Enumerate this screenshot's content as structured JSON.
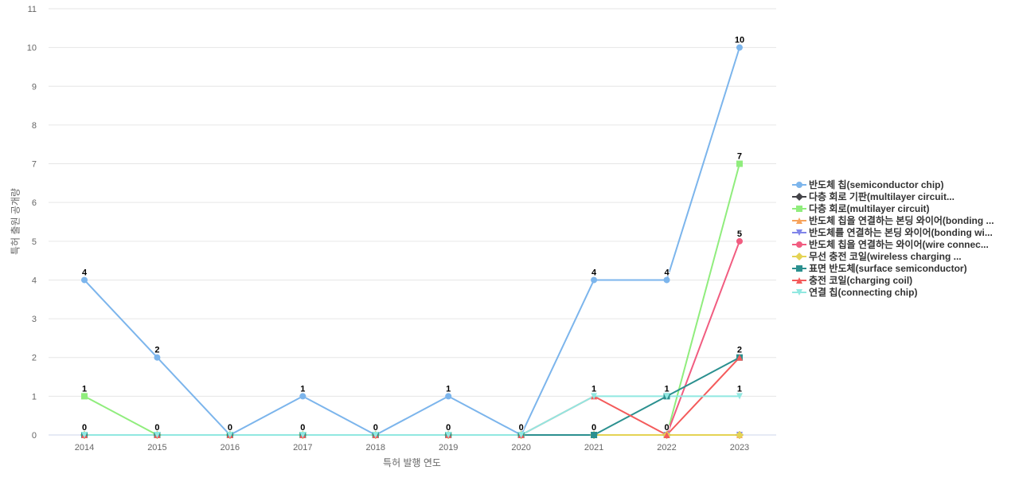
{
  "chart_data": {
    "type": "line",
    "xlabel": "특허 발행 연도",
    "ylabel": "특허 출원 공개량",
    "x": [
      "2014",
      "2015",
      "2016",
      "2017",
      "2018",
      "2019",
      "2020",
      "2021",
      "2022",
      "2023"
    ],
    "ylim": [
      0,
      11
    ],
    "yticks": [
      "0",
      "1",
      "2",
      "3",
      "4",
      "5",
      "6",
      "7",
      "8",
      "9",
      "10",
      "11"
    ],
    "grid": true,
    "legend_position": "right",
    "series": [
      {
        "name": "반도체 칩(semiconductor chip)",
        "color": "#7cb5ec",
        "marker": "circle",
        "values": [
          4,
          2,
          0,
          1,
          0,
          1,
          0,
          4,
          4,
          10
        ],
        "labels": [
          "4",
          "2",
          "0",
          "1",
          "0",
          "1",
          "0",
          "4",
          "4",
          "10"
        ]
      },
      {
        "name": "다층 회로 기판(multilayer circuit...",
        "color": "#434348",
        "marker": "diamond",
        "values": [
          0,
          0,
          0,
          0,
          0,
          0,
          0,
          0,
          0,
          0
        ],
        "labels": []
      },
      {
        "name": "다층 회로(multilayer circuit)",
        "color": "#90ed7d",
        "marker": "square",
        "values": [
          1,
          0,
          0,
          0,
          0,
          0,
          0,
          0,
          0,
          7
        ],
        "labels": [
          "1",
          "",
          "",
          "",
          "",
          "",
          "",
          "",
          "",
          "7"
        ]
      },
      {
        "name": "반도체 칩을 연결하는 본딩 와이어(bonding ...",
        "color": "#f7a35c",
        "marker": "triangle",
        "values": [
          0,
          0,
          0,
          0,
          0,
          0,
          0,
          0,
          0,
          0
        ],
        "labels": []
      },
      {
        "name": "반도체를 연결하는 본딩 와이어(bonding wi...",
        "color": "#8085e9",
        "marker": "triangle-down",
        "values": [
          0,
          0,
          0,
          0,
          0,
          0,
          0,
          0,
          0,
          0
        ],
        "labels": []
      },
      {
        "name": "반도체 칩을 연결하는 와이어(wire connec...",
        "color": "#f15c80",
        "marker": "circle",
        "values": [
          0,
          0,
          0,
          0,
          0,
          0,
          0,
          0,
          0,
          5
        ],
        "labels": [
          "",
          "",
          "",
          "",
          "",
          "",
          "",
          "",
          "",
          "5"
        ]
      },
      {
        "name": "무선 충전 코일(wireless charging ...",
        "color": "#e4d354",
        "marker": "diamond",
        "values": [
          0,
          0,
          0,
          0,
          0,
          0,
          0,
          0,
          0,
          0
        ],
        "labels": []
      },
      {
        "name": "표면 반도체(surface semiconductor)",
        "color": "#2b908f",
        "marker": "square",
        "values": [
          0,
          0,
          0,
          0,
          0,
          0,
          0,
          0,
          1,
          2
        ],
        "labels": [
          "0",
          "0",
          "0",
          "0",
          "0",
          "0",
          "0",
          "0",
          "",
          "2"
        ]
      },
      {
        "name": "충전 코일(charging coil)",
        "color": "#f45b5b",
        "marker": "triangle",
        "values": [
          0,
          0,
          0,
          0,
          0,
          0,
          0,
          1,
          0,
          2
        ],
        "labels": [
          "",
          "",
          "",
          "",
          "",
          "",
          "",
          "",
          "0",
          ""
        ]
      },
      {
        "name": "연결 칩(connecting chip)",
        "color": "#91e8e1",
        "marker": "triangle-down",
        "values": [
          0,
          0,
          0,
          0,
          0,
          0,
          0,
          1,
          1,
          1
        ],
        "labels": [
          "",
          "",
          "",
          "",
          "",
          "",
          "",
          "1",
          "1",
          "1"
        ]
      }
    ]
  }
}
